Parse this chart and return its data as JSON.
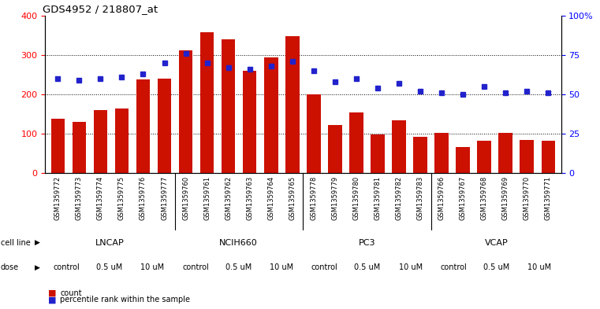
{
  "title": "GDS4952 / 218807_at",
  "samples": [
    "GSM1359772",
    "GSM1359773",
    "GSM1359774",
    "GSM1359775",
    "GSM1359776",
    "GSM1359777",
    "GSM1359760",
    "GSM1359761",
    "GSM1359762",
    "GSM1359763",
    "GSM1359764",
    "GSM1359765",
    "GSM1359778",
    "GSM1359779",
    "GSM1359780",
    "GSM1359781",
    "GSM1359782",
    "GSM1359783",
    "GSM1359766",
    "GSM1359767",
    "GSM1359768",
    "GSM1359769",
    "GSM1359770",
    "GSM1359771"
  ],
  "counts": [
    137,
    129,
    160,
    163,
    238,
    239,
    311,
    357,
    340,
    260,
    293,
    348,
    199,
    122,
    153,
    97,
    133,
    91,
    101,
    67,
    82,
    102,
    84,
    82
  ],
  "percentiles": [
    60,
    59,
    60,
    61,
    63,
    70,
    76,
    70,
    67,
    66,
    68,
    71,
    65,
    58,
    60,
    54,
    57,
    52,
    51,
    50,
    55,
    51,
    52,
    51
  ],
  "cell_lines": [
    {
      "name": "LNCAP",
      "start": 0,
      "end": 6,
      "color": "#ccffcc"
    },
    {
      "name": "NCIH660",
      "start": 6,
      "end": 12,
      "color": "#99ee99"
    },
    {
      "name": "PC3",
      "start": 12,
      "end": 18,
      "color": "#88dd88"
    },
    {
      "name": "VCAP",
      "start": 18,
      "end": 24,
      "color": "#44bb66"
    }
  ],
  "dose_group_labels": [
    "control",
    "0.5 uM",
    "10 uM",
    "control",
    "0.5 uM",
    "10 uM",
    "control",
    "0.5 uM",
    "10 uM",
    "control",
    "0.5 uM",
    "10 uM"
  ],
  "dose_group_colors": [
    "#ffffff",
    "#ee99ee",
    "#cc55cc",
    "#ffffff",
    "#ee99ee",
    "#cc55cc",
    "#ffffff",
    "#ee99ee",
    "#cc55cc",
    "#ffffff",
    "#ee99ee",
    "#cc55cc"
  ],
  "dose_group_starts": [
    0,
    2,
    4,
    6,
    8,
    10,
    12,
    14,
    16,
    18,
    20,
    22
  ],
  "dose_group_ends": [
    2,
    4,
    6,
    8,
    10,
    12,
    14,
    16,
    18,
    20,
    22,
    24
  ],
  "bar_color": "#cc1100",
  "dot_color": "#2222cc",
  "left_ylim": [
    0,
    400
  ],
  "right_ylim": [
    0,
    100
  ],
  "left_yticks": [
    0,
    100,
    200,
    300,
    400
  ],
  "right_yticks": [
    0,
    25,
    50,
    75,
    100
  ],
  "right_yticklabels": [
    "0",
    "25",
    "50",
    "75",
    "100%"
  ]
}
